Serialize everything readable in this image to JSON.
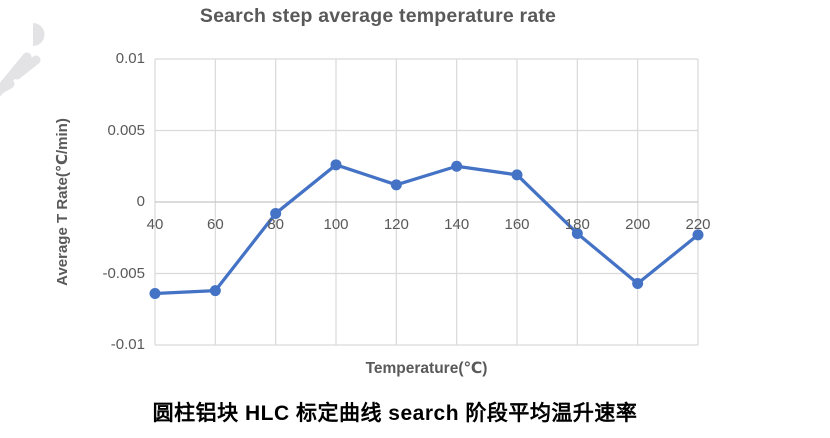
{
  "chart": {
    "title": "Search step average temperature rate",
    "xlabel": "Temperature(℃)",
    "ylabel": "Average T Rate(℃/min)",
    "x_tick_labels": [
      "40",
      "60",
      "80",
      "100",
      "120",
      "140",
      "160",
      "180",
      "200",
      "220"
    ],
    "y_tick_labels": [
      "0.01",
      "0.005",
      "0",
      "-0.005",
      "-0.01"
    ],
    "colors": {
      "line": "#4472C4",
      "marker": "#4472C4",
      "grid": "#D9D9D9",
      "zero_line": "#C6C6C6",
      "text": "#595959",
      "caption_text": "#000000",
      "watermark": "#E3E3E6"
    }
  },
  "chart_data": {
    "type": "line",
    "title": "Search step average temperature rate",
    "xlabel": "Temperature(℃)",
    "ylabel": "Average T Rate(℃/min)",
    "x": [
      40,
      60,
      80,
      100,
      120,
      140,
      160,
      180,
      200,
      220
    ],
    "values": [
      -0.0064,
      -0.0062,
      -0.0008,
      0.0026,
      0.0012,
      0.0025,
      0.0019,
      -0.0022,
      -0.0057,
      -0.0023
    ],
    "xlim": [
      40,
      220
    ],
    "ylim": [
      -0.01,
      0.01
    ],
    "xticks": [
      40,
      60,
      80,
      100,
      120,
      140,
      160,
      180,
      200,
      220
    ],
    "yticks": [
      0.01,
      0.005,
      0,
      -0.005,
      -0.01
    ],
    "grid": true,
    "legend": false,
    "marker": "circle"
  },
  "caption": "圆柱铝块 HLC 标定曲线 search 阶段平均温升速率"
}
